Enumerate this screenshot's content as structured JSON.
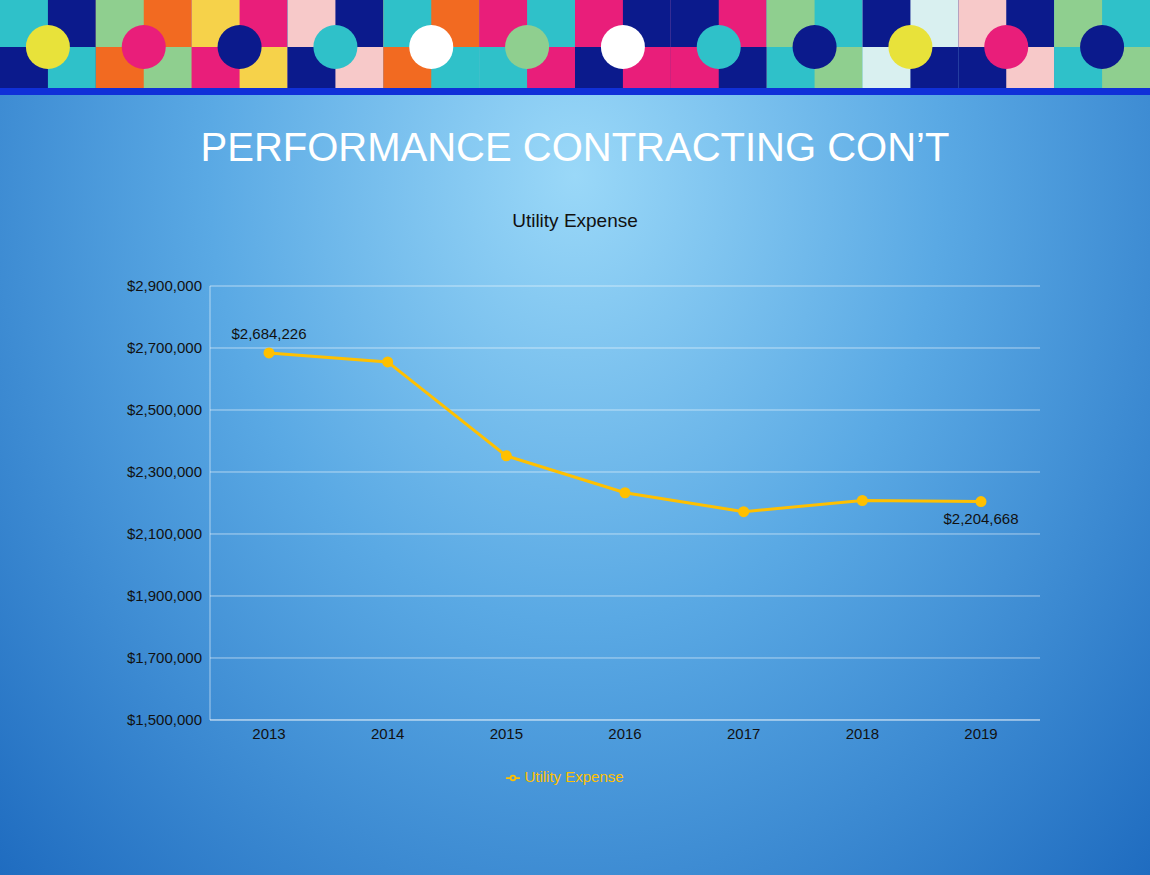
{
  "chart_data": {
    "type": "line",
    "title": "PERFORMANCE CONTRACTING CON’T",
    "subtitle": "Utility Expense",
    "categories": [
      "2013",
      "2014",
      "2015",
      "2016",
      "2017",
      "2018",
      "2019"
    ],
    "series": [
      {
        "name": "Utility Expense",
        "color": "#ffc000",
        "marker": "circle",
        "values": [
          2684226,
          2655000,
          2352000,
          2233000,
          2172000,
          2208000,
          2204668
        ],
        "value_labels": [
          "$2,684,226",
          null,
          null,
          null,
          null,
          null,
          "$2,204,668"
        ]
      }
    ],
    "ylim": [
      1500000,
      2900000
    ],
    "yticks": [
      {
        "value": 1500000,
        "label": "$1,500,000"
      },
      {
        "value": 1700000,
        "label": "$1,700,000"
      },
      {
        "value": 1900000,
        "label": "$1,900,000"
      },
      {
        "value": 2100000,
        "label": "$2,100,000"
      },
      {
        "value": 2300000,
        "label": "$2,300,000"
      },
      {
        "value": 2500000,
        "label": "$2,500,000"
      },
      {
        "value": 2700000,
        "label": "$2,700,000"
      },
      {
        "value": 2900000,
        "label": "$2,900,000"
      }
    ],
    "grid": true,
    "legend": "bottom"
  }
}
